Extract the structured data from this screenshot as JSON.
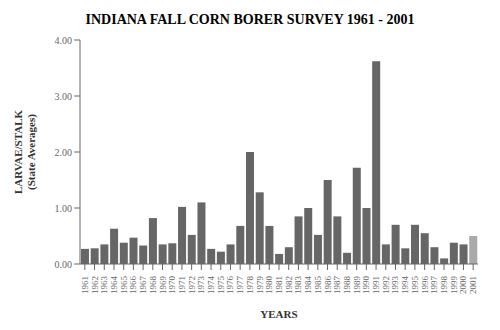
{
  "chart_data": {
    "type": "bar",
    "title": "INDIANA FALL CORN BORER SURVEY 1961 - 2001",
    "xlabel": "YEARS",
    "ylabel": "LARVAE/STALK\n(State Averages)",
    "categories": [
      "1961",
      "1962",
      "1963",
      "1964",
      "1965",
      "1966",
      "1967",
      "1968",
      "1969",
      "1970",
      "1971",
      "1972",
      "1973",
      "1974",
      "1975",
      "1976",
      "1977",
      "1978",
      "1979",
      "1980",
      "1981",
      "1982",
      "1983",
      "1984",
      "1985",
      "1986",
      "1987",
      "1988",
      "1989",
      "1990",
      "1991",
      "1992",
      "1993",
      "1994",
      "1995",
      "1996",
      "1997",
      "1998",
      "1999",
      "2000",
      "2001"
    ],
    "values": [
      0.27,
      0.28,
      0.35,
      0.63,
      0.38,
      0.47,
      0.33,
      0.82,
      0.35,
      0.37,
      1.02,
      0.52,
      1.1,
      0.27,
      0.22,
      0.35,
      0.68,
      2.0,
      1.28,
      0.68,
      0.18,
      0.3,
      0.85,
      1.0,
      0.52,
      1.5,
      0.85,
      0.2,
      1.72,
      1.0,
      3.62,
      0.35,
      0.7,
      0.28,
      0.7,
      0.55,
      0.3,
      0.1,
      0.38,
      0.35,
      0.5
    ],
    "colors": [
      "#666666",
      "#666666",
      "#666666",
      "#666666",
      "#666666",
      "#666666",
      "#666666",
      "#666666",
      "#666666",
      "#666666",
      "#666666",
      "#666666",
      "#666666",
      "#666666",
      "#666666",
      "#666666",
      "#666666",
      "#666666",
      "#666666",
      "#666666",
      "#666666",
      "#666666",
      "#666666",
      "#666666",
      "#666666",
      "#666666",
      "#666666",
      "#666666",
      "#666666",
      "#666666",
      "#666666",
      "#666666",
      "#666666",
      "#666666",
      "#666666",
      "#666666",
      "#666666",
      "#666666",
      "#666666",
      "#666666",
      "#aaaaaa"
    ],
    "ylim": [
      0,
      4
    ],
    "yticks": [
      {
        "value": 0,
        "label": "0.00"
      },
      {
        "value": 1,
        "label": "1.00"
      },
      {
        "value": 2,
        "label": "2.00"
      },
      {
        "value": 3,
        "label": "3.00"
      },
      {
        "value": 4,
        "label": "4.00"
      }
    ],
    "grid": false
  }
}
